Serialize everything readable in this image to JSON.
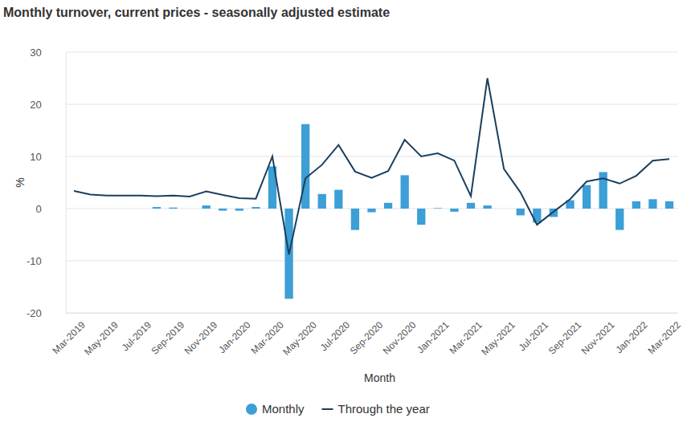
{
  "chart_data": {
    "type": "bar",
    "title": "Monthly turnover, current prices - seasonally adjusted estimate",
    "x_label": "Month",
    "y_label": "%",
    "categories": [
      "Mar-2019",
      null,
      "May-2019",
      null,
      "Jul-2019",
      null,
      "Sep-2019",
      null,
      "Nov-2019",
      null,
      "Jan-2020",
      null,
      "Mar-2020",
      null,
      "May-2020",
      null,
      "Jul-2020",
      null,
      "Sep-2020",
      null,
      "Nov-2020",
      null,
      "Jan-2021",
      null,
      "Mar-2021",
      null,
      "May-2021",
      null,
      "Jul-2021",
      null,
      "Sep-2021",
      null,
      "Nov-2021",
      null,
      "Jan-2022",
      null,
      "Mar-2022"
    ],
    "series": [
      {
        "name": "Monthly",
        "type": "bar",
        "color": "#3c9fd6",
        "values": [
          0.0,
          0.0,
          0.0,
          0.0,
          0.0,
          0.3,
          0.2,
          0.0,
          0.6,
          -0.4,
          -0.4,
          0.3,
          8.1,
          -17.3,
          16.2,
          2.8,
          3.6,
          -4.1,
          -0.7,
          1.1,
          6.4,
          -3.1,
          0.1,
          -0.6,
          1.1,
          0.6,
          0.0,
          -1.3,
          -2.7,
          -1.6,
          1.6,
          4.5,
          7.0,
          -4.1,
          1.4,
          1.8,
          1.4
        ]
      },
      {
        "name": "Through the year",
        "type": "line",
        "color": "#1b3f5e",
        "values": [
          3.4,
          2.7,
          2.5,
          2.5,
          2.5,
          2.4,
          2.5,
          2.3,
          3.3,
          2.6,
          2.0,
          1.9,
          10.0,
          -8.8,
          5.8,
          8.4,
          12.2,
          7.1,
          5.9,
          7.2,
          13.2,
          10.0,
          10.6,
          9.2,
          2.4,
          25.0,
          7.6,
          3.1,
          -3.1,
          -0.6,
          1.8,
          5.2,
          5.8,
          4.8,
          6.3,
          9.2,
          9.5
        ]
      }
    ],
    "ylim": [
      -20,
      30
    ],
    "yticks": [
      -20,
      -10,
      0,
      10,
      20,
      30
    ],
    "grid": true,
    "legend": "bottom"
  }
}
